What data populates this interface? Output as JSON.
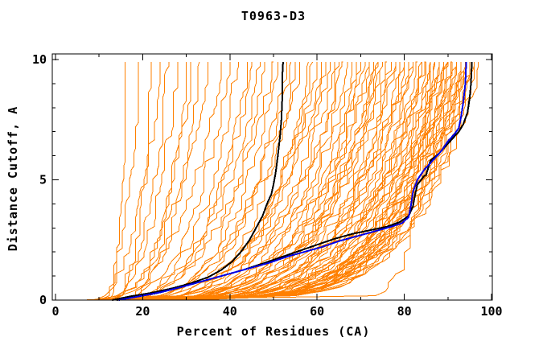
{
  "chart_data": {
    "type": "line",
    "title": "T0963-D3",
    "xlabel": "Percent of Residues (CA)",
    "ylabel": "Distance Cutoff, A",
    "xlim": [
      0,
      100
    ],
    "ylim": [
      0,
      10
    ],
    "x_ticks_major": [
      0,
      20,
      40,
      60,
      80,
      100
    ],
    "x_ticks_minor": [
      10,
      30,
      50,
      70,
      90
    ],
    "y_ticks_major": [
      0,
      5,
      10
    ],
    "y_ticks_minor": [
      1,
      2,
      3,
      4,
      6,
      7,
      8,
      9
    ],
    "grid": false,
    "legend_position": "none",
    "colors": {
      "ensemble": "#ff8000",
      "highlight_black": "#000000",
      "highlight_blue": "#0000e6",
      "frame": "#000000",
      "text": "#000000",
      "background": "#ffffff"
    },
    "series": [
      {
        "name": "highlighted-model-black-plateau",
        "color_key": "highlight_black",
        "width": 2,
        "points": [
          [
            13,
            0
          ],
          [
            17,
            0.15
          ],
          [
            22,
            0.3
          ],
          [
            27,
            0.5
          ],
          [
            31,
            0.7
          ],
          [
            35,
            0.95
          ],
          [
            38,
            1.25
          ],
          [
            40.5,
            1.6
          ],
          [
            42.5,
            2.0
          ],
          [
            44.5,
            2.5
          ],
          [
            46,
            3.0
          ],
          [
            47.5,
            3.5
          ],
          [
            48.5,
            4.0
          ],
          [
            49.5,
            4.4
          ],
          [
            50,
            4.8
          ],
          [
            50.5,
            5.3
          ],
          [
            51,
            6.0
          ],
          [
            51.5,
            6.8
          ],
          [
            51.8,
            7.5
          ],
          [
            52,
            8.3
          ],
          [
            52,
            9.2
          ],
          [
            52.2,
            9.9
          ]
        ]
      },
      {
        "name": "highlighted-model-black-best",
        "color_key": "highlight_black",
        "width": 2,
        "points": [
          [
            14,
            0
          ],
          [
            18,
            0.12
          ],
          [
            23,
            0.28
          ],
          [
            28,
            0.5
          ],
          [
            33,
            0.75
          ],
          [
            38,
            1.0
          ],
          [
            43,
            1.25
          ],
          [
            48,
            1.55
          ],
          [
            52,
            1.8
          ],
          [
            56,
            2.05
          ],
          [
            60,
            2.3
          ],
          [
            64,
            2.55
          ],
          [
            68,
            2.75
          ],
          [
            72,
            2.9
          ],
          [
            76,
            3.05
          ],
          [
            79,
            3.25
          ],
          [
            81,
            3.5
          ],
          [
            82,
            3.9
          ],
          [
            82.5,
            4.4
          ],
          [
            83,
            4.8
          ],
          [
            84.5,
            5.15
          ],
          [
            85,
            5.2
          ],
          [
            85.5,
            5.5
          ],
          [
            86,
            5.8
          ],
          [
            88,
            6.1
          ],
          [
            89.5,
            6.4
          ],
          [
            91,
            6.7
          ],
          [
            92.5,
            7.0
          ],
          [
            93.5,
            7.3
          ],
          [
            94.5,
            7.8
          ],
          [
            95,
            8.4
          ],
          [
            95.3,
            9.0
          ],
          [
            95.5,
            9.9
          ]
        ]
      },
      {
        "name": "highlighted-model-blue",
        "color_key": "highlight_blue",
        "width": 2,
        "points": [
          [
            14.5,
            0
          ],
          [
            19,
            0.15
          ],
          [
            24,
            0.32
          ],
          [
            29,
            0.55
          ],
          [
            34,
            0.8
          ],
          [
            39,
            1.05
          ],
          [
            44,
            1.3
          ],
          [
            49,
            1.55
          ],
          [
            53,
            1.8
          ],
          [
            57,
            2.0
          ],
          [
            61,
            2.2
          ],
          [
            65,
            2.45
          ],
          [
            69,
            2.65
          ],
          [
            73,
            2.85
          ],
          [
            77,
            3.05
          ],
          [
            79.5,
            3.2
          ],
          [
            81,
            3.45
          ],
          [
            81.5,
            3.9
          ],
          [
            82,
            4.5
          ],
          [
            83,
            5.0
          ],
          [
            84.5,
            5.4
          ],
          [
            86.5,
            5.8
          ],
          [
            88.5,
            6.2
          ],
          [
            90,
            6.6
          ],
          [
            91.5,
            6.9
          ],
          [
            92.5,
            7.15
          ],
          [
            93,
            7.6
          ],
          [
            93.5,
            8.2
          ],
          [
            94,
            9.0
          ],
          [
            94.2,
            9.9
          ]
        ]
      }
    ],
    "ensemble": {
      "name": "server-model-curves-orange",
      "color_key": "ensemble",
      "width": 1,
      "count": 90,
      "curve_params_x0_xtop_shape": [
        [
          12,
          16,
          0.55
        ],
        [
          10,
          19,
          0.5
        ],
        [
          14,
          22,
          0.5
        ],
        [
          9,
          24,
          0.45
        ],
        [
          13,
          26,
          0.5
        ],
        [
          11,
          28,
          0.42
        ],
        [
          15,
          30,
          0.45
        ],
        [
          12,
          31,
          0.4
        ],
        [
          16,
          33,
          0.45
        ],
        [
          10,
          35,
          0.4
        ],
        [
          8,
          38,
          0.35
        ],
        [
          14,
          40,
          0.4
        ],
        [
          11,
          42,
          0.32
        ],
        [
          17,
          44,
          0.38
        ],
        [
          9,
          45,
          0.3
        ],
        [
          13,
          47,
          0.35
        ],
        [
          19,
          48,
          0.33
        ],
        [
          7,
          50,
          0.3
        ],
        [
          15,
          51,
          0.32
        ],
        [
          21,
          53,
          0.35
        ],
        [
          12,
          54,
          0.3
        ],
        [
          18,
          55,
          0.28
        ],
        [
          10,
          56,
          0.3
        ],
        [
          23,
          58,
          0.32
        ],
        [
          14,
          59,
          0.28
        ],
        [
          8,
          60,
          0.26
        ],
        [
          16,
          61,
          0.3
        ],
        [
          11,
          62,
          0.27
        ],
        [
          20,
          63,
          0.3
        ],
        [
          13,
          64,
          0.25
        ],
        [
          25,
          65,
          0.3
        ],
        [
          9,
          66,
          0.26
        ],
        [
          17,
          67,
          0.28
        ],
        [
          12,
          68,
          0.24
        ],
        [
          22,
          69,
          0.28
        ],
        [
          15,
          70,
          0.25
        ],
        [
          7,
          71,
          0.22
        ],
        [
          19,
          72,
          0.26
        ],
        [
          11,
          72,
          0.24
        ],
        [
          26,
          73,
          0.28
        ],
        [
          13,
          74,
          0.24
        ],
        [
          18,
          74,
          0.26
        ],
        [
          9,
          75,
          0.22
        ],
        [
          24,
          75,
          0.27
        ],
        [
          14,
          76,
          0.24
        ],
        [
          10,
          77,
          0.21
        ],
        [
          20,
          78,
          0.25
        ],
        [
          16,
          78,
          0.22
        ],
        [
          28,
          79,
          0.27
        ],
        [
          12,
          80,
          0.22
        ],
        [
          22,
          80,
          0.25
        ],
        [
          8,
          81,
          0.2
        ],
        [
          17,
          82,
          0.23
        ],
        [
          13,
          82,
          0.2
        ],
        [
          30,
          83,
          0.26
        ],
        [
          15,
          84,
          0.22
        ],
        [
          10,
          84,
          0.19
        ],
        [
          21,
          85,
          0.24
        ],
        [
          12,
          85,
          0.2
        ],
        [
          25,
          86,
          0.24
        ],
        [
          9,
          86,
          0.18
        ],
        [
          18,
          87,
          0.22
        ],
        [
          14,
          87,
          0.19
        ],
        [
          33,
          88,
          0.26
        ],
        [
          11,
          88,
          0.18
        ],
        [
          23,
          89,
          0.23
        ],
        [
          16,
          89,
          0.2
        ],
        [
          7,
          90,
          0.17
        ],
        [
          19,
          90,
          0.22
        ],
        [
          13,
          91,
          0.19
        ],
        [
          27,
          91,
          0.24
        ],
        [
          10,
          92,
          0.17
        ],
        [
          21,
          92,
          0.22
        ],
        [
          15,
          93,
          0.19
        ],
        [
          8,
          93,
          0.16
        ],
        [
          18,
          94,
          0.2
        ],
        [
          12,
          94,
          0.17
        ],
        [
          24,
          95,
          0.22
        ],
        [
          9,
          95,
          0.16
        ],
        [
          16,
          96,
          0.18
        ],
        [
          6,
          96,
          0.15
        ],
        [
          14,
          97,
          0.17
        ],
        [
          5,
          92,
          0.15
        ],
        [
          11,
          90,
          0.16
        ],
        [
          20,
          93,
          0.21
        ],
        [
          13,
          95,
          0.18
        ],
        [
          17,
          91,
          0.2
        ],
        [
          22,
          94,
          0.23
        ],
        [
          15,
          88,
          0.19
        ],
        [
          14,
          86,
          0.05
        ]
      ]
    }
  }
}
